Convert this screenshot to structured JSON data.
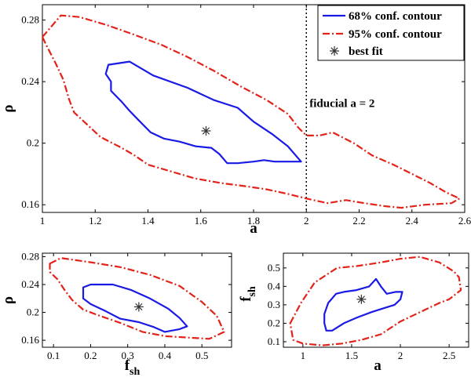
{
  "chart_data": [
    {
      "type": "contour",
      "panel": "main",
      "xlabel": "a",
      "ylabel": "ρ",
      "xlim": [
        1,
        2.6
      ],
      "ylim": [
        0.155,
        0.29
      ],
      "xticks": [
        "1",
        "1.2",
        "1.4",
        "1.6",
        "1.8",
        "2",
        "2.2",
        "2.4",
        "2.6"
      ],
      "yticks": [
        "0.16",
        "0.2",
        "0.24",
        "0.28"
      ],
      "xtick_values": [
        1,
        1.2,
        1.4,
        1.6,
        1.8,
        2,
        2.2,
        2.4,
        2.6
      ],
      "ytick_values": [
        0.16,
        0.2,
        0.24,
        0.28
      ],
      "legend": {
        "position": "top-right",
        "entries": [
          "68% conf. contour",
          "95% conf. contour",
          "best fit"
        ]
      },
      "annotation": {
        "text": "fiducial a = 2",
        "x": 2.0,
        "y": 0.226
      },
      "fiducial_x": 2.0,
      "best_fit": {
        "x": 1.62,
        "y": 0.208
      },
      "series": [
        {
          "name": "68% conf. contour",
          "color": "#1a1ae6",
          "points": [
            [
              1.25,
              0.251
            ],
            [
              1.33,
              0.253
            ],
            [
              1.42,
              0.244
            ],
            [
              1.55,
              0.236
            ],
            [
              1.65,
              0.228
            ],
            [
              1.74,
              0.223
            ],
            [
              1.8,
              0.214
            ],
            [
              1.87,
              0.206
            ],
            [
              1.93,
              0.198
            ],
            [
              1.97,
              0.19
            ],
            [
              1.98,
              0.188
            ],
            [
              1.93,
              0.188
            ],
            [
              1.88,
              0.188
            ],
            [
              1.84,
              0.189
            ],
            [
              1.8,
              0.188
            ],
            [
              1.74,
              0.187
            ],
            [
              1.7,
              0.187
            ],
            [
              1.67,
              0.193
            ],
            [
              1.64,
              0.197
            ],
            [
              1.58,
              0.198
            ],
            [
              1.52,
              0.201
            ],
            [
              1.46,
              0.203
            ],
            [
              1.41,
              0.207
            ],
            [
              1.37,
              0.214
            ],
            [
              1.33,
              0.221
            ],
            [
              1.3,
              0.227
            ],
            [
              1.26,
              0.234
            ],
            [
              1.26,
              0.24
            ],
            [
              1.24,
              0.245
            ],
            [
              1.25,
              0.251
            ]
          ]
        },
        {
          "name": "95% conf. contour",
          "color": "#e32219",
          "points": [
            [
              1.0,
              0.269
            ],
            [
              1.07,
              0.283
            ],
            [
              1.14,
              0.282
            ],
            [
              1.24,
              0.277
            ],
            [
              1.34,
              0.271
            ],
            [
              1.45,
              0.264
            ],
            [
              1.55,
              0.256
            ],
            [
              1.65,
              0.247
            ],
            [
              1.75,
              0.237
            ],
            [
              1.85,
              0.228
            ],
            [
              1.93,
              0.219
            ],
            [
              1.97,
              0.21
            ],
            [
              2.0,
              0.205
            ],
            [
              2.05,
              0.205
            ],
            [
              2.1,
              0.207
            ],
            [
              2.18,
              0.2
            ],
            [
              2.25,
              0.192
            ],
            [
              2.33,
              0.186
            ],
            [
              2.4,
              0.18
            ],
            [
              2.47,
              0.174
            ],
            [
              2.53,
              0.168
            ],
            [
              2.58,
              0.164
            ],
            [
              2.55,
              0.161
            ],
            [
              2.45,
              0.16
            ],
            [
              2.36,
              0.158
            ],
            [
              2.3,
              0.159
            ],
            [
              2.22,
              0.161
            ],
            [
              2.15,
              0.163
            ],
            [
              2.08,
              0.161
            ],
            [
              2.0,
              0.164
            ],
            [
              1.93,
              0.167
            ],
            [
              1.85,
              0.17
            ],
            [
              1.77,
              0.172
            ],
            [
              1.68,
              0.174
            ],
            [
              1.58,
              0.177
            ],
            [
              1.48,
              0.182
            ],
            [
              1.4,
              0.186
            ],
            [
              1.35,
              0.192
            ],
            [
              1.3,
              0.197
            ],
            [
              1.22,
              0.204
            ],
            [
              1.17,
              0.212
            ],
            [
              1.12,
              0.22
            ],
            [
              1.1,
              0.229
            ],
            [
              1.08,
              0.241
            ],
            [
              1.05,
              0.252
            ],
            [
              1.02,
              0.262
            ],
            [
              1.0,
              0.269
            ]
          ]
        }
      ]
    },
    {
      "type": "contour",
      "panel": "bottom-left",
      "xlabel": "f",
      "xlabel_sub": "sh",
      "ylabel": "ρ",
      "xlim": [
        0.07,
        0.58
      ],
      "ylim": [
        0.15,
        0.285
      ],
      "xticks": [
        "0.1",
        "0.2",
        "0.3",
        "0.4",
        "0.5"
      ],
      "yticks": [
        "0.16",
        "0.2",
        "0.24",
        "0.28"
      ],
      "xtick_values": [
        0.1,
        0.2,
        0.3,
        0.4,
        0.5
      ],
      "ytick_values": [
        0.16,
        0.2,
        0.24,
        0.28
      ],
      "best_fit": {
        "x": 0.33,
        "y": 0.208
      },
      "series": [
        {
          "name": "68% conf. contour",
          "color": "#1a1ae6",
          "points": [
            [
              0.18,
              0.236
            ],
            [
              0.2,
              0.24
            ],
            [
              0.26,
              0.24
            ],
            [
              0.31,
              0.232
            ],
            [
              0.36,
              0.22
            ],
            [
              0.41,
              0.205
            ],
            [
              0.44,
              0.192
            ],
            [
              0.46,
              0.18
            ],
            [
              0.44,
              0.176
            ],
            [
              0.4,
              0.172
            ],
            [
              0.37,
              0.179
            ],
            [
              0.33,
              0.186
            ],
            [
              0.28,
              0.191
            ],
            [
              0.24,
              0.202
            ],
            [
              0.2,
              0.212
            ],
            [
              0.18,
              0.22
            ],
            [
              0.18,
              0.236
            ]
          ]
        },
        {
          "name": "95% conf. contour",
          "color": "#e32219",
          "points": [
            [
              0.09,
              0.27
            ],
            [
              0.12,
              0.278
            ],
            [
              0.2,
              0.272
            ],
            [
              0.28,
              0.265
            ],
            [
              0.36,
              0.254
            ],
            [
              0.44,
              0.238
            ],
            [
              0.5,
              0.215
            ],
            [
              0.54,
              0.195
            ],
            [
              0.56,
              0.172
            ],
            [
              0.52,
              0.162
            ],
            [
              0.46,
              0.164
            ],
            [
              0.4,
              0.166
            ],
            [
              0.34,
              0.172
            ],
            [
              0.28,
              0.185
            ],
            [
              0.22,
              0.196
            ],
            [
              0.18,
              0.204
            ],
            [
              0.15,
              0.218
            ],
            [
              0.13,
              0.232
            ],
            [
              0.11,
              0.248
            ],
            [
              0.09,
              0.258
            ],
            [
              0.09,
              0.27
            ]
          ]
        }
      ]
    },
    {
      "type": "contour",
      "panel": "bottom-right",
      "xlabel": "a",
      "ylabel": "f",
      "ylabel_sub": "sh",
      "xlim": [
        0.8,
        2.7
      ],
      "ylim": [
        0.07,
        0.58
      ],
      "xticks": [
        "1",
        "1.5",
        "2",
        "2.5"
      ],
      "yticks": [
        "0.1",
        "0.2",
        "0.3",
        "0.4",
        "0.5"
      ],
      "xtick_values": [
        1,
        1.5,
        2,
        2.5
      ],
      "ytick_values": [
        0.1,
        0.2,
        0.3,
        0.4,
        0.5
      ],
      "best_fit": {
        "x": 1.6,
        "y": 0.33
      },
      "series": [
        {
          "name": "68% conf. contour",
          "color": "#1a1ae6",
          "points": [
            [
              1.22,
              0.25
            ],
            [
              1.26,
              0.31
            ],
            [
              1.34,
              0.36
            ],
            [
              1.42,
              0.37
            ],
            [
              1.55,
              0.38
            ],
            [
              1.68,
              0.4
            ],
            [
              1.75,
              0.44
            ],
            [
              1.8,
              0.4
            ],
            [
              1.86,
              0.36
            ],
            [
              1.95,
              0.37
            ],
            [
              2.02,
              0.37
            ],
            [
              2.0,
              0.33
            ],
            [
              1.94,
              0.3
            ],
            [
              1.82,
              0.28
            ],
            [
              1.7,
              0.26
            ],
            [
              1.55,
              0.23
            ],
            [
              1.42,
              0.2
            ],
            [
              1.3,
              0.16
            ],
            [
              1.24,
              0.16
            ],
            [
              1.22,
              0.2
            ],
            [
              1.22,
              0.25
            ]
          ]
        },
        {
          "name": "95% conf. contour",
          "color": "#e32219",
          "points": [
            [
              0.87,
              0.2
            ],
            [
              0.98,
              0.31
            ],
            [
              1.12,
              0.42
            ],
            [
              1.35,
              0.5
            ],
            [
              1.55,
              0.51
            ],
            [
              1.8,
              0.53
            ],
            [
              2.0,
              0.55
            ],
            [
              2.2,
              0.56
            ],
            [
              2.4,
              0.53
            ],
            [
              2.55,
              0.48
            ],
            [
              2.6,
              0.45
            ],
            [
              2.62,
              0.38
            ],
            [
              2.5,
              0.33
            ],
            [
              2.4,
              0.31
            ],
            [
              2.2,
              0.26
            ],
            [
              2.0,
              0.21
            ],
            [
              1.8,
              0.14
            ],
            [
              1.6,
              0.11
            ],
            [
              1.4,
              0.09
            ],
            [
              1.2,
              0.08
            ],
            [
              1.0,
              0.09
            ],
            [
              0.9,
              0.11
            ],
            [
              0.87,
              0.2
            ]
          ]
        }
      ]
    }
  ]
}
